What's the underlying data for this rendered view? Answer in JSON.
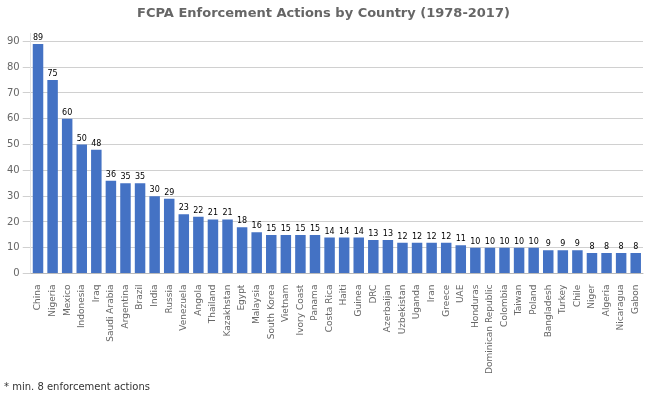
{
  "chart_data": {
    "type": "bar",
    "title": "FCPA Enforcement Actions by Country (1978-2017)",
    "footnote": "* min. 8 enforcement actions",
    "categories": [
      "China",
      "Nigeria",
      "Mexico",
      "Indonesia",
      "Iraq",
      "Saudi Arabia",
      "Argentina",
      "Brazil",
      "India",
      "Russia",
      "Venezuela",
      "Angola",
      "Thailand",
      "Kazakhstan",
      "Egypt",
      "Malaysia",
      "South Korea",
      "Vietnam",
      "Ivory Coast",
      "Panama",
      "Costa Rica",
      "Haiti",
      "Guinea",
      "DRC",
      "Azerbaijan",
      "Uzbekistan",
      "Uganda",
      "Iran",
      "Greece",
      "UAE",
      "Honduras",
      "Dominican Republic",
      "Colombia",
      "Taiwan",
      "Poland",
      "Bangladesh",
      "Turkey",
      "Chile",
      "Niger",
      "Algeria",
      "Nicaragua",
      "Gabon"
    ],
    "values": [
      89,
      75,
      60,
      50,
      48,
      36,
      35,
      35,
      30,
      29,
      23,
      22,
      21,
      21,
      18,
      16,
      15,
      15,
      15,
      15,
      14,
      14,
      14,
      13,
      13,
      12,
      12,
      12,
      12,
      11,
      10,
      10,
      10,
      10,
      10,
      9,
      9,
      9,
      8,
      8,
      8,
      8
    ],
    "color": "#4472C4",
    "ylim": [
      0,
      93
    ],
    "yticks": [
      0,
      10,
      20,
      30,
      40,
      50,
      60,
      70,
      80,
      90
    ],
    "grid": true,
    "data_labels": true
  }
}
